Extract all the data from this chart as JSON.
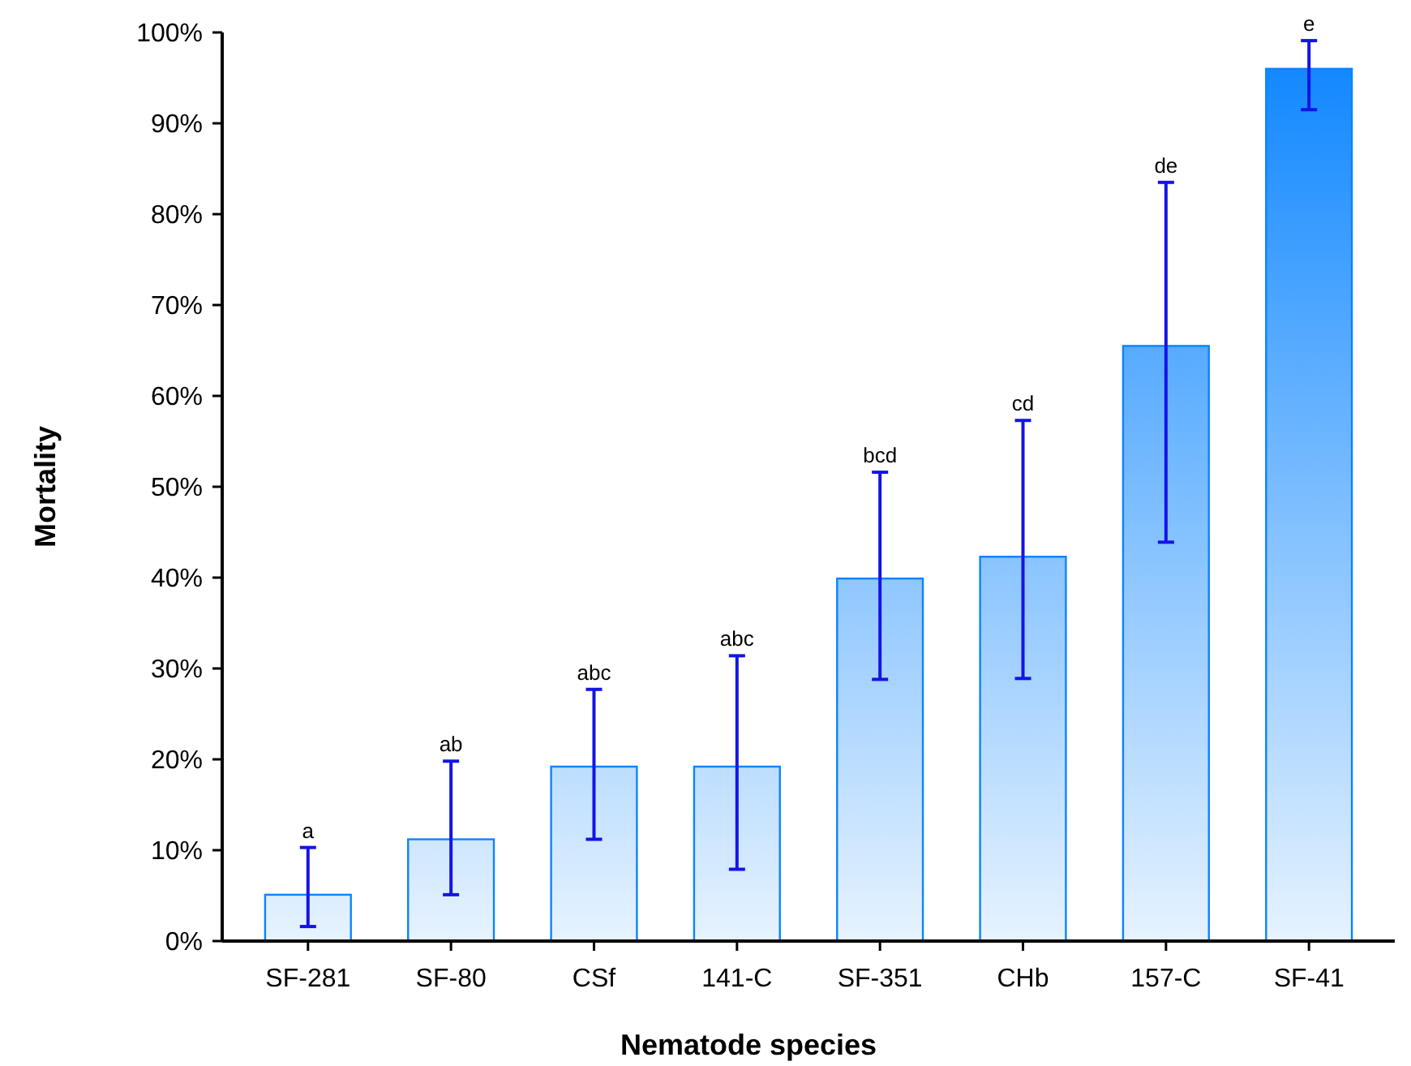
{
  "chart_data": {
    "type": "bar",
    "xlabel": "Nematode species",
    "ylabel": "Mortality",
    "categories": [
      "SF-281",
      "SF-80",
      "CSf",
      "141-C",
      "SF-351",
      "CHb",
      "157-C",
      "SF-41"
    ],
    "values": [
      5.1,
      11.2,
      19.2,
      19.2,
      39.9,
      42.3,
      65.5,
      96.0
    ],
    "errors": [
      [
        1.6,
        10.3
      ],
      [
        5.1,
        19.8
      ],
      [
        11.2,
        27.7
      ],
      [
        7.9,
        31.4
      ],
      [
        28.8,
        51.6
      ],
      [
        28.9,
        57.3
      ],
      [
        43.9,
        83.5
      ],
      [
        91.5,
        99.1
      ]
    ],
    "color": "#0a84ff",
    "ylim": [
      0,
      100
    ],
    "yticks": [
      {
        "value": 0,
        "label": "0%"
      },
      {
        "value": 10,
        "label": "10%"
      },
      {
        "value": 20,
        "label": "20%"
      },
      {
        "value": 30,
        "label": "30%"
      },
      {
        "value": 40,
        "label": "40%"
      },
      {
        "value": 50,
        "label": "50%"
      },
      {
        "value": 60,
        "label": "60%"
      },
      {
        "value": 70,
        "label": "70%"
      },
      {
        "value": 80,
        "label": "80%"
      },
      {
        "value": 90,
        "label": "90%"
      },
      {
        "value": 100,
        "label": "100%"
      }
    ],
    "grid": false,
    "annotations": [
      {
        "text": "a",
        "x": "SF-281",
        "y": 10.3
      },
      {
        "text": "ab",
        "x": "SF-80",
        "y": 19.8
      },
      {
        "text": "abc",
        "x": "CSf",
        "y": 27.7
      },
      {
        "text": "abc",
        "x": "141-C",
        "y": 31.4
      },
      {
        "text": "bcd",
        "x": "SF-351",
        "y": 51.6
      },
      {
        "text": "cd",
        "x": "CHb",
        "y": 57.3
      },
      {
        "text": "de",
        "x": "157-C",
        "y": 83.5
      },
      {
        "text": "e",
        "x": "SF-41",
        "y": 99.1
      }
    ]
  }
}
